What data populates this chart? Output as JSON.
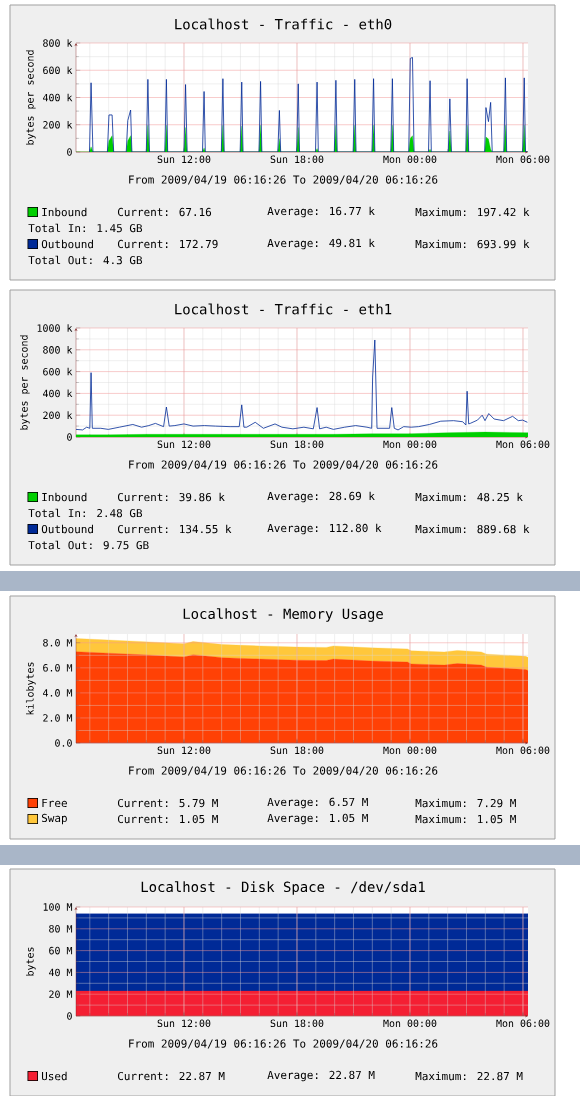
{
  "chart_data": [
    {
      "type": "line",
      "title": "Localhost - Traffic - eth0",
      "subtitle": "From 2009/04/19 06:16:26 To 2009/04/20 06:16:26",
      "ylabel": "bytes per second",
      "legend": "bottom",
      "grid": true,
      "xlim": [
        "2009-04-19T06:16",
        "2009-04-20T06:16"
      ],
      "xticks": [
        {
          "value": "2009-04-19T12:00",
          "label": "Sun 12:00"
        },
        {
          "value": "2009-04-19T18:00",
          "label": "Sun 18:00"
        },
        {
          "value": "2009-04-20T00:00",
          "label": "Mon 00:00"
        },
        {
          "value": "2009-04-20T06:00",
          "label": "Mon 06:00"
        }
      ],
      "ylim": [
        0,
        800
      ],
      "yticks": [
        {
          "value": 0,
          "label": "0"
        },
        {
          "value": 200,
          "label": "200 k"
        },
        {
          "value": 400,
          "label": "400 k"
        },
        {
          "value": 600,
          "label": "600 k"
        },
        {
          "value": 800,
          "label": "800 k"
        }
      ],
      "x": [
        "2009-04-19T06:16",
        "2009-04-19T06:59",
        "2009-04-19T07:04",
        "2009-04-19T07:10",
        "2009-04-19T07:56",
        "2009-04-19T08:01",
        "2009-04-19T08:11",
        "2009-04-19T08:16",
        "2009-04-19T08:56",
        "2009-04-19T09:01",
        "2009-04-19T09:10",
        "2009-04-19T09:14",
        "2009-04-19T10:00",
        "2009-04-19T10:05",
        "2009-04-19T10:10",
        "2009-04-19T10:59",
        "2009-04-19T11:04",
        "2009-04-19T11:08",
        "2009-04-19T12:00",
        "2009-04-19T12:05",
        "2009-04-19T12:10",
        "2009-04-19T12:59",
        "2009-04-19T13:04",
        "2009-04-19T13:08",
        "2009-04-19T13:59",
        "2009-04-19T14:04",
        "2009-04-19T14:08",
        "2009-04-19T14:59",
        "2009-04-19T15:04",
        "2009-04-19T15:08",
        "2009-04-19T15:59",
        "2009-04-19T16:04",
        "2009-04-19T16:08",
        "2009-04-19T16:59",
        "2009-04-19T17:04",
        "2009-04-19T17:08",
        "2009-04-19T17:59",
        "2009-04-19T18:04",
        "2009-04-19T18:08",
        "2009-04-19T18:59",
        "2009-04-19T19:04",
        "2009-04-19T19:08",
        "2009-04-19T19:59",
        "2009-04-19T20:04",
        "2009-04-19T20:08",
        "2009-04-19T20:59",
        "2009-04-19T21:04",
        "2009-04-19T21:08",
        "2009-04-19T21:59",
        "2009-04-19T22:04",
        "2009-04-19T22:08",
        "2009-04-19T22:59",
        "2009-04-19T23:04",
        "2009-04-19T23:08",
        "2009-04-19T23:56",
        "2009-04-20T00:01",
        "2009-04-20T00:08",
        "2009-04-20T00:13",
        "2009-04-20T00:59",
        "2009-04-20T01:04",
        "2009-04-20T01:08",
        "2009-04-20T02:02",
        "2009-04-20T02:07",
        "2009-04-20T02:12",
        "2009-04-20T02:58",
        "2009-04-20T03:02",
        "2009-04-20T03:07",
        "2009-04-20T03:58",
        "2009-04-20T04:02",
        "2009-04-20T04:10",
        "2009-04-20T04:17",
        "2009-04-20T04:22",
        "2009-04-20T04:59",
        "2009-04-20T05:04",
        "2009-04-20T05:08",
        "2009-04-20T05:59",
        "2009-04-20T06:04",
        "2009-04-20T06:08",
        "2009-04-20T06:16"
      ],
      "series": [
        {
          "name": "Inbound",
          "type": "area",
          "color": "#00cf00",
          "values": [
            0,
            0,
            38,
            0,
            0,
            82,
            120,
            0,
            0,
            82,
            120,
            0,
            0,
            197,
            0,
            0,
            197,
            0,
            0,
            180,
            0,
            0,
            30,
            0,
            0,
            197,
            0,
            0,
            190,
            0,
            0,
            197,
            0,
            0,
            97,
            0,
            0,
            180,
            0,
            0,
            25,
            0,
            0,
            197,
            0,
            0,
            197,
            0,
            0,
            197,
            0,
            0,
            197,
            0,
            0,
            100,
            120,
            0,
            0,
            20,
            0,
            0,
            154,
            0,
            0,
            197,
            0,
            0,
            110,
            95,
            20,
            0,
            0,
            197,
            0,
            0,
            197,
            0,
            0
          ]
        },
        {
          "name": "Outbound",
          "type": "line",
          "color": "#002a97",
          "values": [
            null,
            0,
            508,
            0,
            0,
            272,
            272,
            0,
            0,
            231,
            308,
            0,
            0,
            533,
            0,
            0,
            533,
            0,
            0,
            495,
            0,
            0,
            444,
            0,
            0,
            538,
            0,
            0,
            513,
            0,
            0,
            518,
            0,
            0,
            305,
            0,
            0,
            500,
            0,
            0,
            513,
            0,
            0,
            526,
            0,
            0,
            533,
            0,
            0,
            538,
            0,
            0,
            538,
            0,
            0,
            687,
            694,
            0,
            0,
            523,
            0,
            0,
            390,
            0,
            0,
            538,
            0,
            0,
            326,
            223,
            364,
            0,
            0,
            544,
            0,
            0,
            544,
            0,
            0
          ]
        }
      ],
      "annotations": [
        "Current: 67.16",
        "Average: 16.77 k",
        "Maximum: 197.42 k",
        "Current: 172.79",
        "Average: 49.81 k",
        "Maximum: 693.99 k",
        "Total In: 1.45 GB",
        "Total Out: 4.3 GB"
      ]
    },
    {
      "type": "line",
      "title": "Localhost - Traffic - eth1",
      "subtitle": "From 2009/04/19 06:16:26 To 2009/04/20 06:16:26",
      "ylabel": "bytes per second",
      "legend": "bottom",
      "grid": true,
      "xlim": [
        "2009-04-19T06:16",
        "2009-04-20T06:16"
      ],
      "xticks": [
        {
          "value": "2009-04-19T12:00",
          "label": "Sun 12:00"
        },
        {
          "value": "2009-04-19T18:00",
          "label": "Sun 18:00"
        },
        {
          "value": "2009-04-20T00:00",
          "label": "Mon 00:00"
        },
        {
          "value": "2009-04-20T06:00",
          "label": "Mon 06:00"
        }
      ],
      "ylim": [
        0,
        1000
      ],
      "yticks": [
        {
          "value": 0,
          "label": "0"
        },
        {
          "value": 200,
          "label": "200 k"
        },
        {
          "value": 400,
          "label": "400 k"
        },
        {
          "value": 600,
          "label": "600 k"
        },
        {
          "value": 800,
          "label": "800 k"
        },
        {
          "value": 1000,
          "label": "1000 k"
        }
      ],
      "x": [
        "2009-04-19T06:16",
        "2009-04-19T06:37",
        "2009-04-19T06:50",
        "2009-04-19T07:00",
        "2009-04-19T07:04",
        "2009-04-19T07:08",
        "2009-04-19T07:35",
        "2009-04-19T07:59",
        "2009-04-19T08:34",
        "2009-04-19T09:17",
        "2009-04-19T09:45",
        "2009-04-19T10:08",
        "2009-04-19T10:29",
        "2009-04-19T10:55",
        "2009-04-19T11:04",
        "2009-04-19T11:13",
        "2009-04-19T11:31",
        "2009-04-19T12:00",
        "2009-04-19T12:29",
        "2009-04-19T13:05",
        "2009-04-19T13:40",
        "2009-04-19T14:27",
        "2009-04-19T14:56",
        "2009-04-19T15:04",
        "2009-04-19T15:11",
        "2009-04-19T15:20",
        "2009-04-19T15:47",
        "2009-04-19T16:13",
        "2009-04-19T16:50",
        "2009-04-19T17:12",
        "2009-04-19T17:47",
        "2009-04-19T18:22",
        "2009-04-19T18:52",
        "2009-04-19T19:04",
        "2009-04-19T19:12",
        "2009-04-19T19:33",
        "2009-04-19T19:56",
        "2009-04-19T20:32",
        "2009-04-19T21:07",
        "2009-04-19T21:43",
        "2009-04-19T21:58",
        "2009-04-19T22:01",
        "2009-04-19T22:08",
        "2009-04-19T22:15",
        "2009-04-19T22:41",
        "2009-04-19T22:55",
        "2009-04-19T23:02",
        "2009-04-19T23:10",
        "2009-04-19T23:22",
        "2009-04-19T23:40",
        "2009-04-20T00:04",
        "2009-04-20T00:27",
        "2009-04-20T01:02",
        "2009-04-20T01:38",
        "2009-04-20T02:19",
        "2009-04-20T02:48",
        "2009-04-20T02:58",
        "2009-04-20T03:02",
        "2009-04-20T03:07",
        "2009-04-20T03:12",
        "2009-04-20T03:35",
        "2009-04-20T03:50",
        "2009-04-20T03:59",
        "2009-04-20T04:11",
        "2009-04-20T04:28",
        "2009-04-20T04:58",
        "2009-04-20T05:27",
        "2009-04-20T05:45",
        "2009-04-20T05:59",
        "2009-04-20T06:14"
      ],
      "series": [
        {
          "name": "Inbound",
          "type": "area",
          "color": "#00cf00",
          "x": [
            "2009-04-19T06:16",
            "2009-04-19T08:00",
            "2009-04-19T10:00",
            "2009-04-19T12:00",
            "2009-04-19T14:00",
            "2009-04-19T16:00",
            "2009-04-19T18:00",
            "2009-04-19T20:00",
            "2009-04-19T22:00",
            "2009-04-20T00:00",
            "2009-04-20T02:00",
            "2009-04-20T04:00",
            "2009-04-20T06:16"
          ],
          "values": [
            20,
            20,
            25,
            25,
            25,
            25,
            25,
            25,
            30,
            30,
            40,
            45,
            40
          ]
        },
        {
          "name": "Outbound",
          "type": "line",
          "color": "#002a97",
          "values": [
            70,
            65,
            90,
            80,
            590,
            80,
            80,
            70,
            90,
            115,
            90,
            105,
            125,
            95,
            275,
            100,
            105,
            120,
            100,
            105,
            100,
            95,
            95,
            295,
            90,
            90,
            135,
            80,
            120,
            90,
            75,
            90,
            75,
            270,
            75,
            90,
            70,
            90,
            105,
            90,
            80,
            550,
            890,
            80,
            80,
            80,
            270,
            80,
            65,
            95,
            90,
            95,
            115,
            145,
            150,
            140,
            110,
            420,
            120,
            125,
            155,
            200,
            150,
            215,
            165,
            150,
            190,
            150,
            155,
            135
          ]
        }
      ],
      "annotations": [
        "Current: 39.86 k",
        "Average: 28.69 k",
        "Maximum: 48.25 k",
        "Current: 134.55 k",
        "Average: 112.80 k",
        "Maximum: 889.68 k",
        "Total In: 2.48 GB",
        "Total Out: 9.75 GB"
      ]
    },
    {
      "type": "area",
      "title": "Localhost - Memory Usage",
      "subtitle": "From 2009/04/19 06:16:26 To 2009/04/20 06:16:26",
      "ylabel": "kilobytes",
      "legend": "bottom",
      "grid": true,
      "stacked": true,
      "xlim": [
        "2009-04-19T06:16",
        "2009-04-20T06:16"
      ],
      "xticks": [
        {
          "value": "2009-04-19T12:00",
          "label": "Sun 12:00"
        },
        {
          "value": "2009-04-19T18:00",
          "label": "Sun 18:00"
        },
        {
          "value": "2009-04-20T00:00",
          "label": "Mon 00:00"
        },
        {
          "value": "2009-04-20T06:00",
          "label": "Mon 06:00"
        }
      ],
      "ylim": [
        0,
        8.7
      ],
      "yticks": [
        {
          "value": 0,
          "label": "0.0"
        },
        {
          "value": 2,
          "label": "2.0 M"
        },
        {
          "value": 4,
          "label": "4.0 M"
        },
        {
          "value": 6,
          "label": "6.0 M"
        },
        {
          "value": 8,
          "label": "8.0 M"
        }
      ],
      "x": [
        "2009-04-19T06:16",
        "2009-04-19T07:59",
        "2009-04-19T10:08",
        "2009-04-19T12:00",
        "2009-04-19T12:29",
        "2009-04-19T14:04",
        "2009-04-19T16:01",
        "2009-04-19T17:59",
        "2009-04-19T19:33",
        "2009-04-19T19:56",
        "2009-04-19T21:54",
        "2009-04-19T23:52",
        "2009-04-20T00:04",
        "2009-04-20T01:49",
        "2009-04-20T02:31",
        "2009-04-20T03:47",
        "2009-04-20T04:05",
        "2009-04-20T06:08",
        "2009-04-20T06:16"
      ],
      "series": [
        {
          "name": "Free",
          "color": "#ff4105",
          "values": [
            7.29,
            7.17,
            7.02,
            6.87,
            7.05,
            6.81,
            6.7,
            6.61,
            6.58,
            6.7,
            6.55,
            6.46,
            6.31,
            6.22,
            6.34,
            6.22,
            6.04,
            5.87,
            5.79
          ]
        },
        {
          "name": "Swap",
          "color": "#ffc73b",
          "values": [
            1.05,
            1.05,
            1.05,
            1.05,
            1.05,
            1.05,
            1.05,
            1.05,
            1.05,
            1.05,
            1.05,
            1.05,
            1.05,
            1.05,
            1.05,
            1.05,
            1.05,
            1.05,
            1.05
          ]
        }
      ],
      "annotations": [
        "Current: 5.79 M",
        "Average: 6.57 M",
        "Maximum: 7.29 M",
        "Current: 1.05 M",
        "Average: 1.05 M",
        "Maximum: 1.05 M"
      ]
    },
    {
      "type": "area",
      "title": "Localhost - Disk Space - /dev/sda1",
      "subtitle": "From 2009/04/19 06:16:26 To 2009/04/20 06:16:26",
      "ylabel": "bytes",
      "legend": "bottom",
      "grid": true,
      "stacked": true,
      "xlim": [
        "2009-04-19T06:16",
        "2009-04-20T06:16"
      ],
      "xticks": [
        {
          "value": "2009-04-19T12:00",
          "label": "Sun 12:00"
        },
        {
          "value": "2009-04-19T18:00",
          "label": "Sun 18:00"
        },
        {
          "value": "2009-04-20T00:00",
          "label": "Mon 00:00"
        },
        {
          "value": "2009-04-20T06:00",
          "label": "Mon 06:00"
        }
      ],
      "ylim": [
        0,
        100
      ],
      "yticks": [
        {
          "value": 0,
          "label": "0"
        },
        {
          "value": 20,
          "label": "20 M"
        },
        {
          "value": 40,
          "label": "40 M"
        },
        {
          "value": 60,
          "label": "60 M"
        },
        {
          "value": 80,
          "label": "80 M"
        },
        {
          "value": 100,
          "label": "100 M"
        }
      ],
      "x": [
        "2009-04-19T06:16",
        "2009-04-20T06:16"
      ],
      "series": [
        {
          "name": "Used",
          "color": "#f41f33",
          "values": [
            22.87,
            22.87
          ]
        },
        {
          "color": "#002a97",
          "values": [
            71,
            71
          ]
        }
      ],
      "annotations": [
        "Current: 22.87 M",
        "Average: 22.87 M",
        "Maximum: 22.87 M"
      ]
    }
  ]
}
